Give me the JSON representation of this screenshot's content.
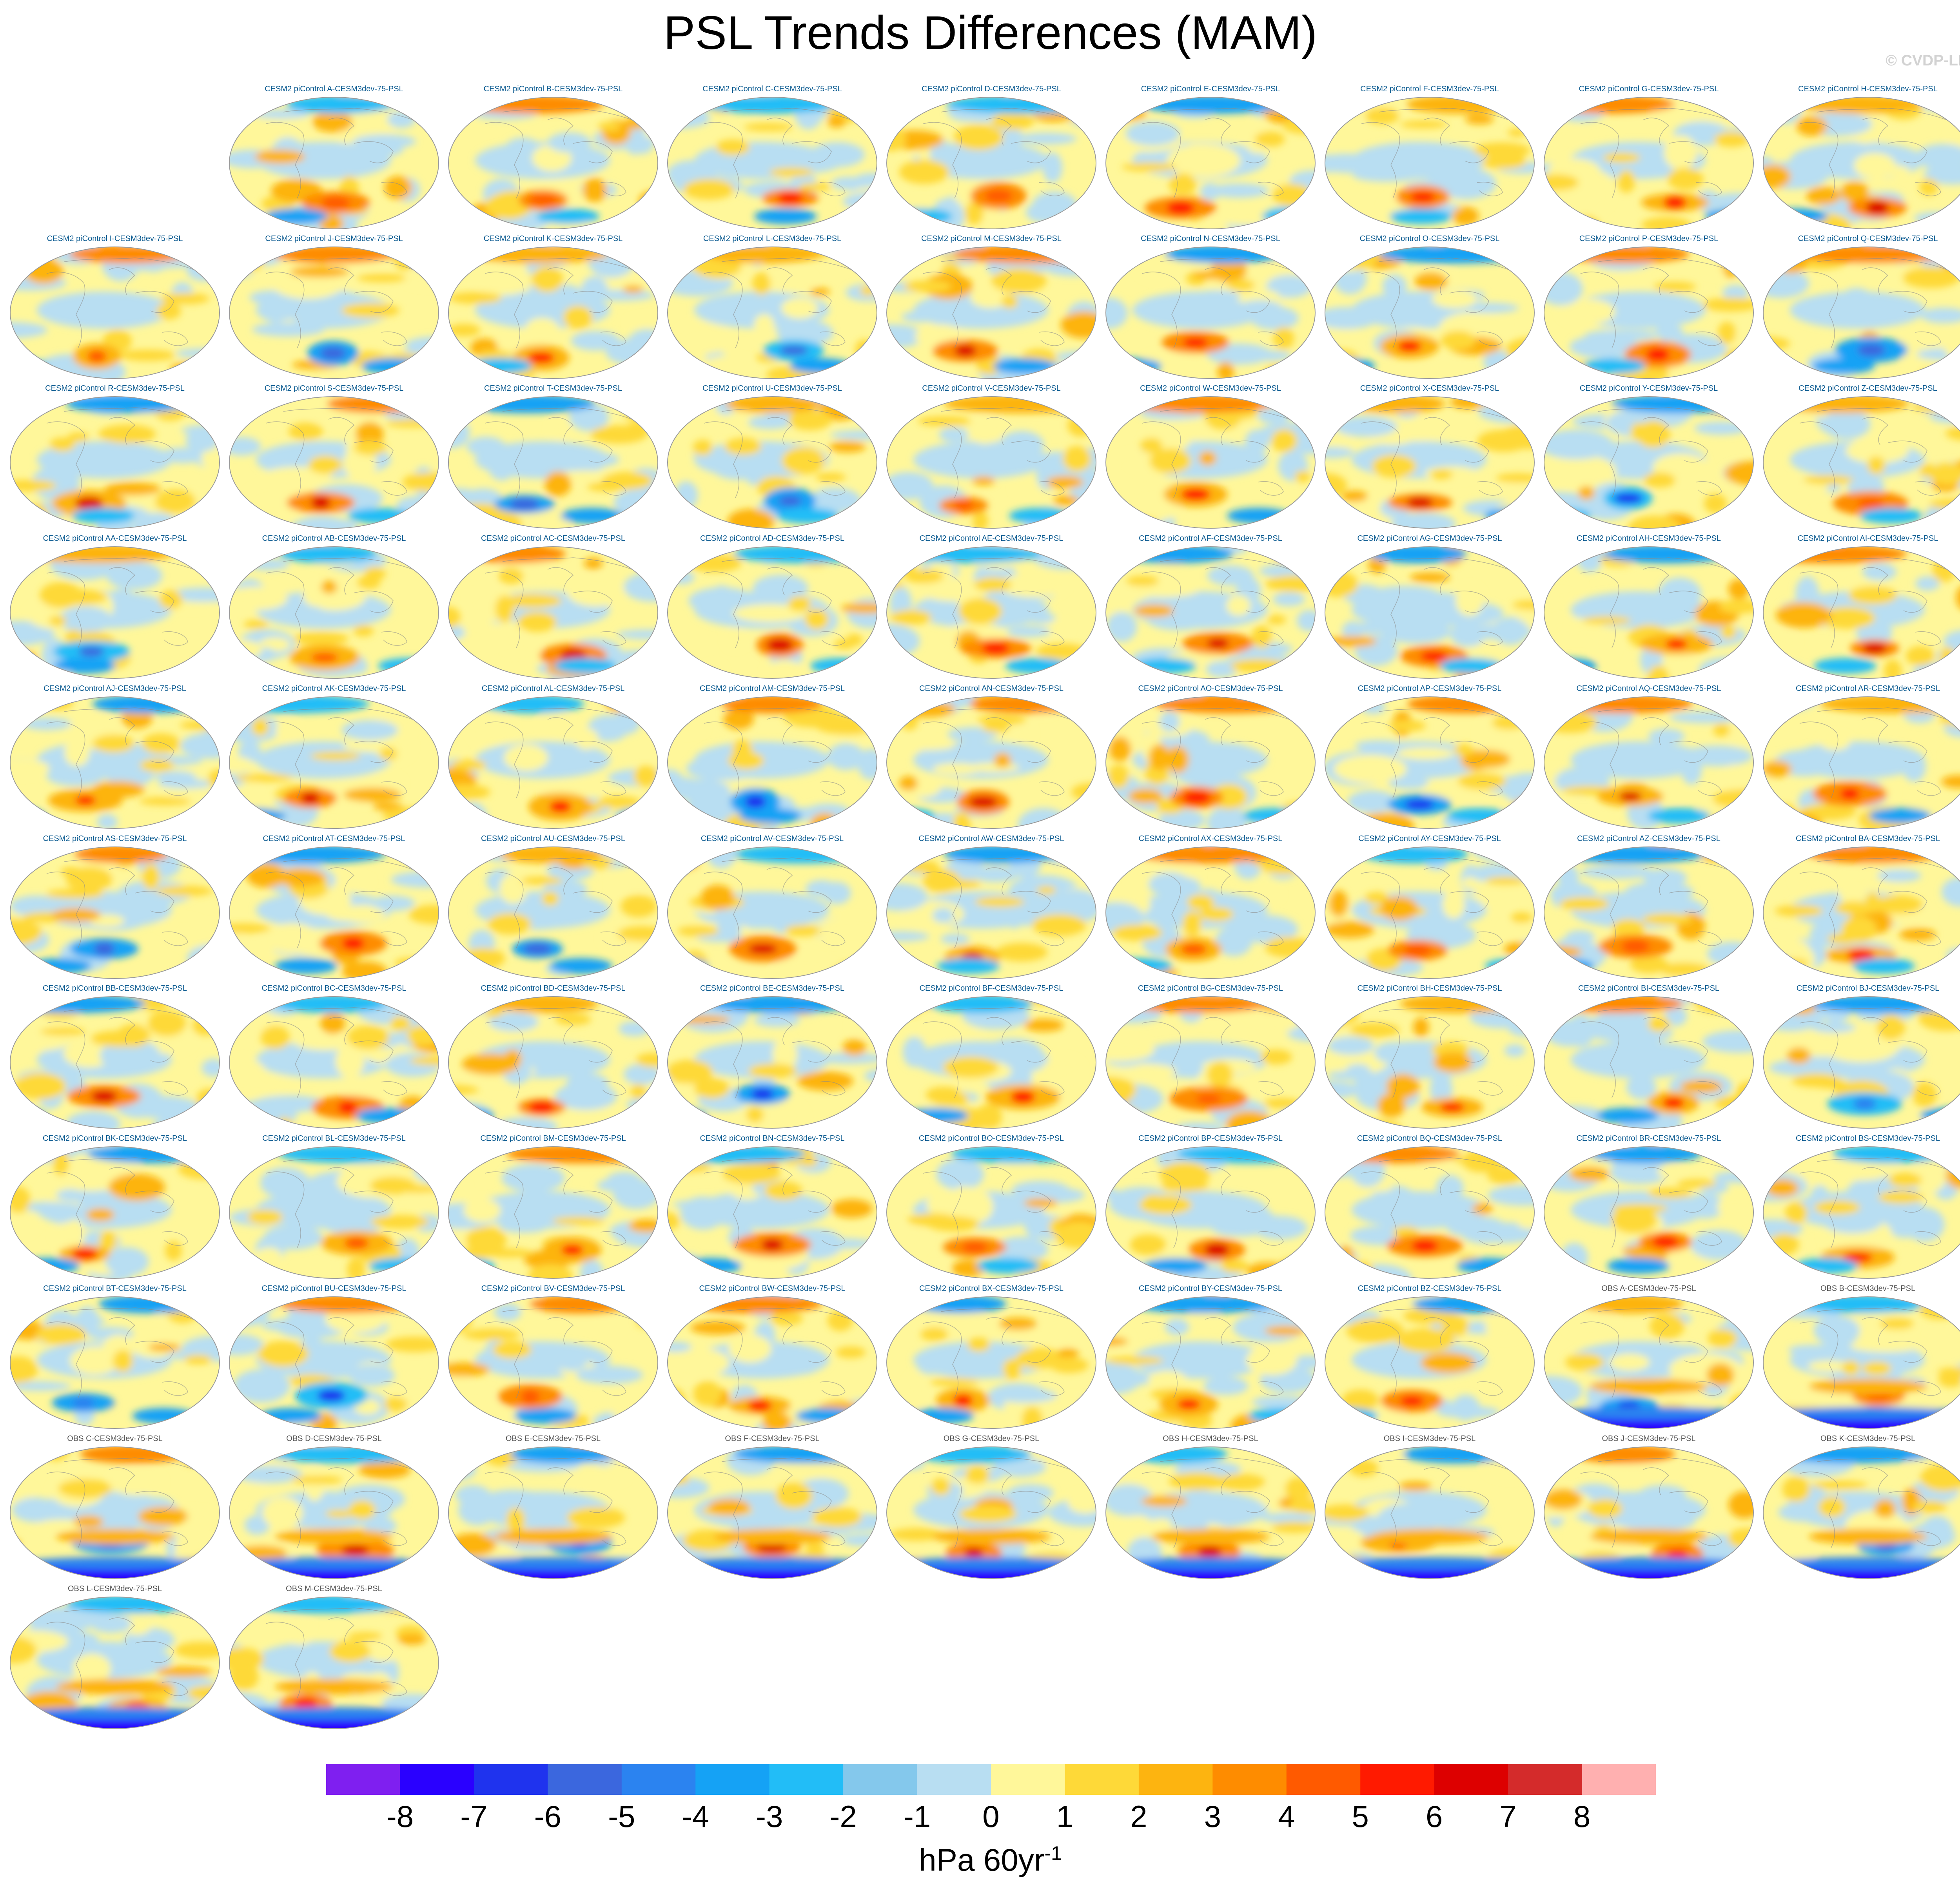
{
  "title": "PSL Trends Differences (MAM)",
  "copyright": "© CVDP-LE",
  "chart_data": {
    "type": "heatmap",
    "description_panels": "grid of global map panels, 9 columns",
    "panels": [
      "CESM2 piControl A-CESM3dev-75-PSL",
      "CESM2 piControl B-CESM3dev-75-PSL",
      "CESM2 piControl C-CESM3dev-75-PSL",
      "CESM2 piControl D-CESM3dev-75-PSL",
      "CESM2 piControl E-CESM3dev-75-PSL",
      "CESM2 piControl F-CESM3dev-75-PSL",
      "CESM2 piControl G-CESM3dev-75-PSL",
      "CESM2 piControl H-CESM3dev-75-PSL",
      "CESM2 piControl I-CESM3dev-75-PSL",
      "CESM2 piControl J-CESM3dev-75-PSL",
      "CESM2 piControl K-CESM3dev-75-PSL",
      "CESM2 piControl L-CESM3dev-75-PSL",
      "CESM2 piControl M-CESM3dev-75-PSL",
      "CESM2 piControl N-CESM3dev-75-PSL",
      "CESM2 piControl O-CESM3dev-75-PSL",
      "CESM2 piControl P-CESM3dev-75-PSL",
      "CESM2 piControl Q-CESM3dev-75-PSL",
      "CESM2 piControl R-CESM3dev-75-PSL",
      "CESM2 piControl S-CESM3dev-75-PSL",
      "CESM2 piControl T-CESM3dev-75-PSL",
      "CESM2 piControl U-CESM3dev-75-PSL",
      "CESM2 piControl V-CESM3dev-75-PSL",
      "CESM2 piControl W-CESM3dev-75-PSL",
      "CESM2 piControl X-CESM3dev-75-PSL",
      "CESM2 piControl Y-CESM3dev-75-PSL",
      "CESM2 piControl Z-CESM3dev-75-PSL",
      "CESM2 piControl AA-CESM3dev-75-PSL",
      "CESM2 piControl AB-CESM3dev-75-PSL",
      "CESM2 piControl AC-CESM3dev-75-PSL",
      "CESM2 piControl AD-CESM3dev-75-PSL",
      "CESM2 piControl AE-CESM3dev-75-PSL",
      "CESM2 piControl AF-CESM3dev-75-PSL",
      "CESM2 piControl AG-CESM3dev-75-PSL",
      "CESM2 piControl AH-CESM3dev-75-PSL",
      "CESM2 piControl AI-CESM3dev-75-PSL",
      "CESM2 piControl AJ-CESM3dev-75-PSL",
      "CESM2 piControl AK-CESM3dev-75-PSL",
      "CESM2 piControl AL-CESM3dev-75-PSL",
      "CESM2 piControl AM-CESM3dev-75-PSL",
      "CESM2 piControl AN-CESM3dev-75-PSL",
      "CESM2 piControl AO-CESM3dev-75-PSL",
      "CESM2 piControl AP-CESM3dev-75-PSL",
      "CESM2 piControl AQ-CESM3dev-75-PSL",
      "CESM2 piControl AR-CESM3dev-75-PSL",
      "CESM2 piControl AS-CESM3dev-75-PSL",
      "CESM2 piControl AT-CESM3dev-75-PSL",
      "CESM2 piControl AU-CESM3dev-75-PSL",
      "CESM2 piControl AV-CESM3dev-75-PSL",
      "CESM2 piControl AW-CESM3dev-75-PSL",
      "CESM2 piControl AX-CESM3dev-75-PSL",
      "CESM2 piControl AY-CESM3dev-75-PSL",
      "CESM2 piControl AZ-CESM3dev-75-PSL",
      "CESM2 piControl BA-CESM3dev-75-PSL",
      "CESM2 piControl BB-CESM3dev-75-PSL",
      "CESM2 piControl BC-CESM3dev-75-PSL",
      "CESM2 piControl BD-CESM3dev-75-PSL",
      "CESM2 piControl BE-CESM3dev-75-PSL",
      "CESM2 piControl BF-CESM3dev-75-PSL",
      "CESM2 piControl BG-CESM3dev-75-PSL",
      "CESM2 piControl BH-CESM3dev-75-PSL",
      "CESM2 piControl BI-CESM3dev-75-PSL",
      "CESM2 piControl BJ-CESM3dev-75-PSL",
      "CESM2 piControl BK-CESM3dev-75-PSL",
      "CESM2 piControl BL-CESM3dev-75-PSL",
      "CESM2 piControl BM-CESM3dev-75-PSL",
      "CESM2 piControl BN-CESM3dev-75-PSL",
      "CESM2 piControl BO-CESM3dev-75-PSL",
      "CESM2 piControl BP-CESM3dev-75-PSL",
      "CESM2 piControl BQ-CESM3dev-75-PSL",
      "CESM2 piControl BR-CESM3dev-75-PSL",
      "CESM2 piControl BS-CESM3dev-75-PSL",
      "CESM2 piControl BT-CESM3dev-75-PSL",
      "CESM2 piControl BU-CESM3dev-75-PSL",
      "CESM2 piControl BV-CESM3dev-75-PSL",
      "CESM2 piControl BW-CESM3dev-75-PSL",
      "CESM2 piControl BX-CESM3dev-75-PSL",
      "CESM2 piControl BY-CESM3dev-75-PSL",
      "CESM2 piControl BZ-CESM3dev-75-PSL",
      "OBS A-CESM3dev-75-PSL",
      "OBS B-CESM3dev-75-PSL",
      "OBS C-CESM3dev-75-PSL",
      "OBS D-CESM3dev-75-PSL",
      "OBS E-CESM3dev-75-PSL",
      "OBS F-CESM3dev-75-PSL",
      "OBS G-CESM3dev-75-PSL",
      "OBS H-CESM3dev-75-PSL",
      "OBS I-CESM3dev-75-PSL",
      "OBS J-CESM3dev-75-PSL",
      "OBS K-CESM3dev-75-PSL",
      "OBS L-CESM3dev-75-PSL",
      "OBS M-CESM3dev-75-PSL"
    ],
    "colorbar": {
      "levels": [
        -8,
        -7,
        -6,
        -5,
        -4,
        -3,
        -2,
        -1,
        0,
        1,
        2,
        3,
        4,
        5,
        6,
        7,
        8
      ],
      "labels": [
        "-8",
        "-7",
        "-6",
        "-5",
        "-4",
        "-3",
        "-2",
        "-1",
        "0",
        "1",
        "2",
        "3",
        "4",
        "5",
        "6",
        "7",
        "8"
      ],
      "colors": [
        "#7f1ff0",
        "#2a00ff",
        "#1f33ee",
        "#3b67de",
        "#2b83f0",
        "#15a2f5",
        "#22bdf7",
        "#84c8ec",
        "#b8def2",
        "#fff79a",
        "#fed938",
        "#fdb410",
        "#fe8c00",
        "#ff5a00",
        "#ff1a00",
        "#dd0000",
        "#d42b2b",
        "#ffb0b0"
      ],
      "units": "hPa 60yr",
      "units_exp": "-1"
    }
  }
}
